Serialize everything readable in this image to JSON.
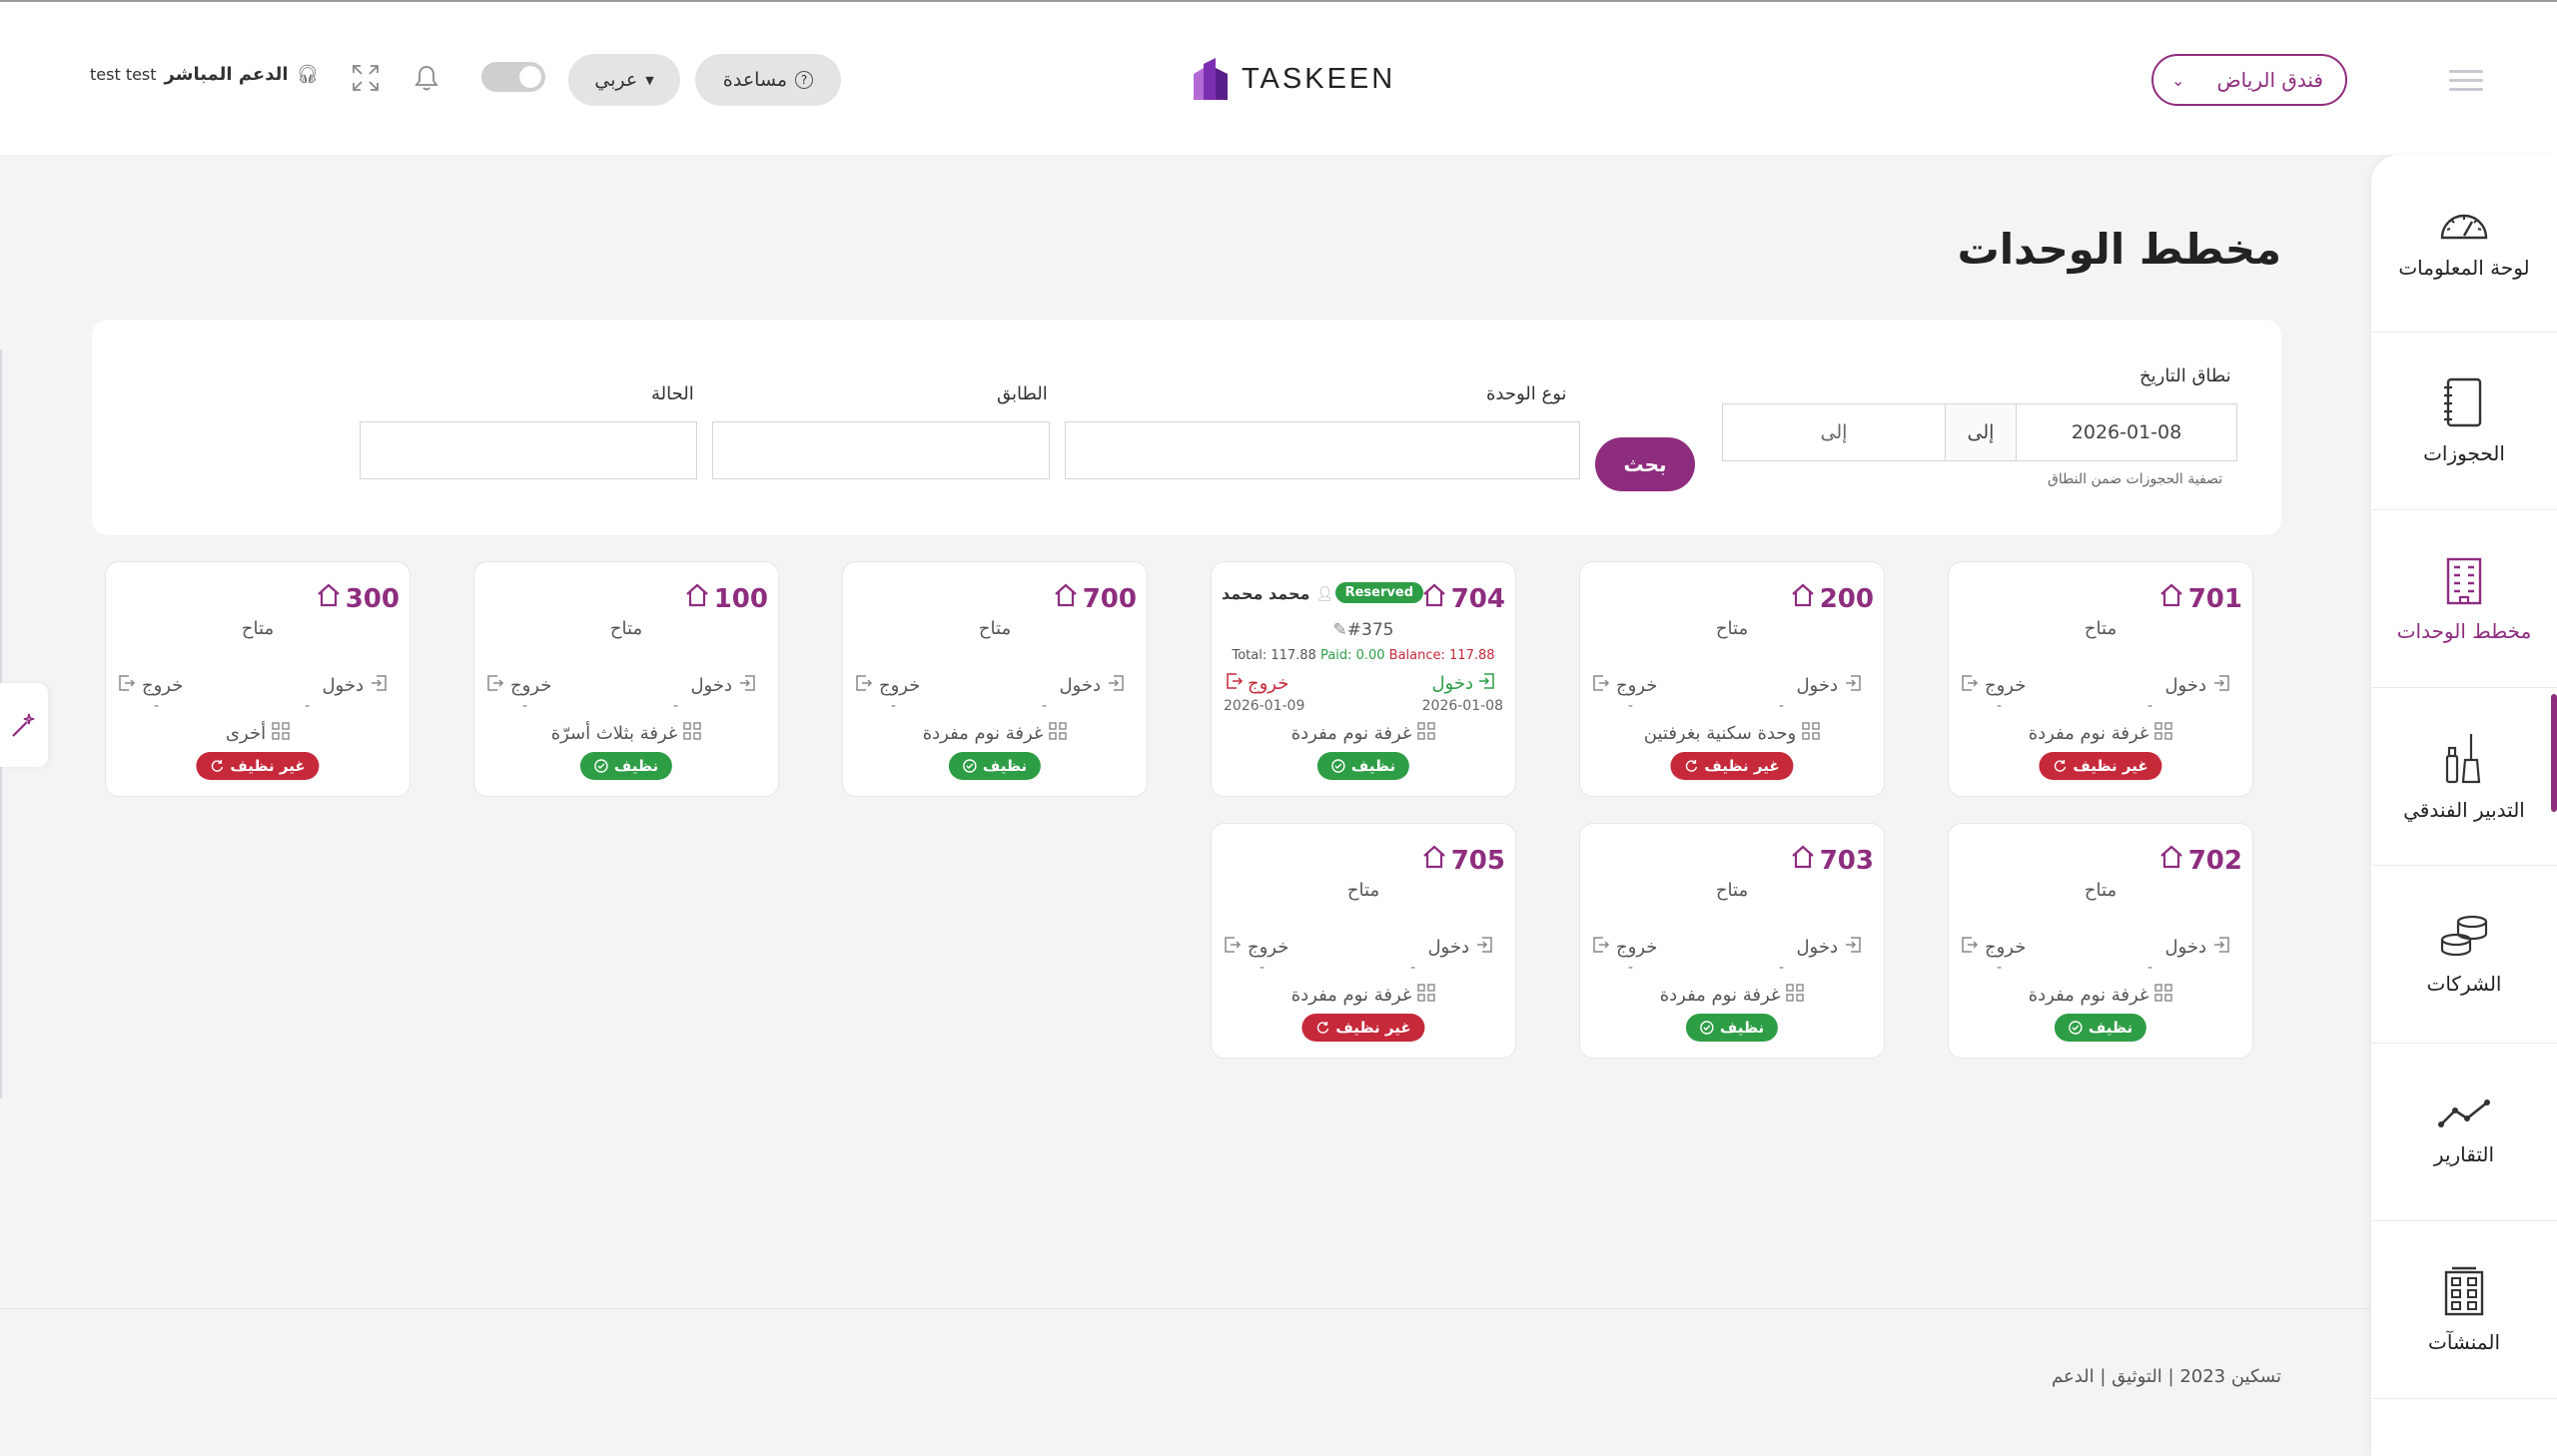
{
  "header": {
    "hotel_select": "فندق الرياض",
    "logo_text": "TASKEEN",
    "help_label": "مساعدة",
    "lang_label": "عربي",
    "support_label": "الدعم المباشر",
    "user_name": "test test"
  },
  "sidebar": {
    "items": [
      {
        "label": "لوحة المعلومات",
        "icon": "dashboard-gauge-icon"
      },
      {
        "label": "الحجوزات",
        "icon": "notebook-icon"
      },
      {
        "label": "مخطط الوحدات",
        "icon": "building-icon"
      },
      {
        "label": "التدبير الفندقي",
        "icon": "cleaning-icon"
      },
      {
        "label": "الشركات",
        "icon": "coins-icon"
      },
      {
        "label": "التقارير",
        "icon": "trend-line-icon"
      },
      {
        "label": "المنشآت",
        "icon": "facility-icon"
      }
    ]
  },
  "page": {
    "title": "مخطط الوحدات"
  },
  "filters": {
    "date_range_label": "نطاق التاريخ",
    "from_value": "2026-01-08",
    "to_label": "إلى",
    "to_placeholder": "إلى",
    "hint": "تصفية الحجوزات ضمن النطاق",
    "search_label": "بحث",
    "unit_type_label": "نوع الوحدة",
    "floor_label": "الطابق",
    "status_label": "الحالة"
  },
  "labels": {
    "available": "متاح",
    "check_in": "دخول",
    "check_out": "خروج",
    "dash": "-",
    "clean": "نظيف",
    "dirty": "غير نظيف",
    "reserved": "Reserved"
  },
  "units": [
    {
      "number": "701",
      "type": "غرفة نوم مفردة",
      "status": "غير نظيف"
    },
    {
      "number": "200",
      "type": "وحدة سكنية بغرفتين",
      "status": "غير نظيف"
    },
    {
      "number": "704",
      "type": "غرفة نوم مفردة",
      "status": "نظيف",
      "guest": "محمد محمد",
      "booking": "#375",
      "total": "Total: 117.88",
      "paid": "Paid: 0.00",
      "balance": "Balance: 117.88",
      "check_in_date": "2026-01-08",
      "check_out_date": "2026-01-09"
    },
    {
      "number": "700",
      "type": "غرفة نوم مفردة",
      "status": "نظيف"
    },
    {
      "number": "100",
      "type": "غرفة بثلاث أسرّة",
      "status": "نظيف"
    },
    {
      "number": "300",
      "type": "أخرى",
      "status": "غير نظيف"
    },
    {
      "number": "702",
      "type": "غرفة نوم مفردة",
      "status": "نظيف"
    },
    {
      "number": "703",
      "type": "غرفة نوم مفردة",
      "status": "نظيف"
    },
    {
      "number": "705",
      "type": "غرفة نوم مفردة",
      "status": "غير نظيف"
    }
  ],
  "footer": {
    "text": "تسكين 2023 | التوثيق | الدعم"
  },
  "colors": {
    "brand": "#8e2d7e",
    "clean": "#2e9e46",
    "dirty": "#c6293a"
  }
}
